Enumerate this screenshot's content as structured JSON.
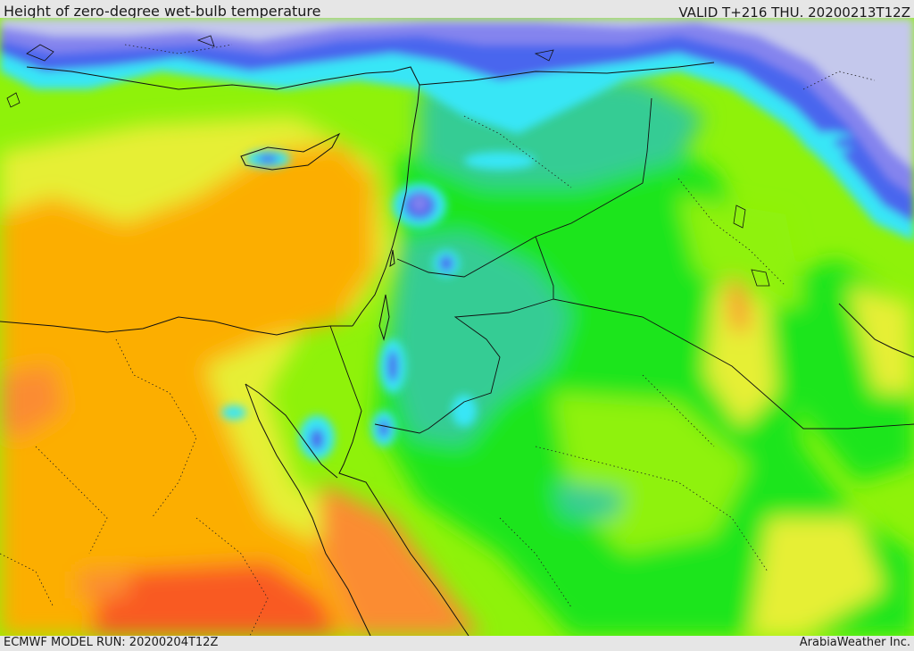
{
  "header": {
    "title": "Height of zero-degree wet-bulb temperature",
    "valid": "VALID T+216 THU. 20200213T12Z"
  },
  "footer": {
    "model_run": "ECMWF MODEL RUN: 20200204T12Z",
    "credit": "ArabiaWeather Inc."
  },
  "palette": {
    "lowest": "#c4c8ec",
    "very_low": "#8484ee",
    "low_blue": "#4a66ee",
    "cyan": "#38e6f6",
    "teal": "#34cc94",
    "green": "#1ee51e",
    "light_green": "#8ff20a",
    "yellow_green": "#e6ef36",
    "orange": "#fcae06",
    "dark_orange": "#fb8c31",
    "red_orange": "#f95a22"
  }
}
